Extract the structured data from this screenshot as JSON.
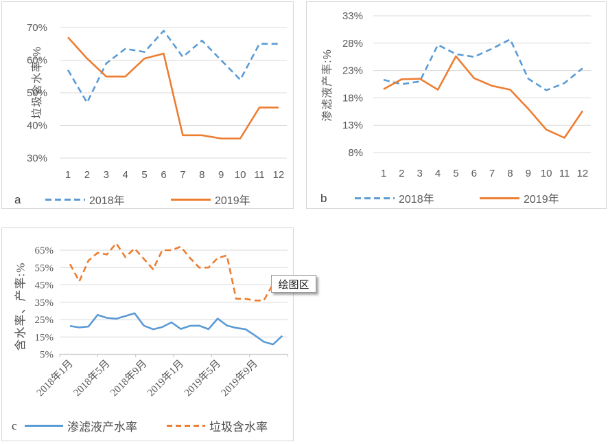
{
  "colors": {
    "series_blue": "#5B9BD5",
    "series_orange": "#ED7D31",
    "gridline": "#d9d9d9",
    "axis_line": "#c9c9c9",
    "tick_text": "#595959"
  },
  "tooltip": {
    "label": "绘图区"
  },
  "chart_data": [
    {
      "id": "a",
      "type": "line",
      "panel_label": "a",
      "y_axis_title": "垃圾含水率:%",
      "y_tick_labels": [
        "70%",
        "60%",
        "50%",
        "40%",
        "30%"
      ],
      "y_tick_values": [
        70,
        60,
        50,
        40,
        30
      ],
      "y_max": 70,
      "y_min": 30,
      "grid": true,
      "legend_position": "bottom",
      "categories": [
        "1",
        "2",
        "3",
        "4",
        "5",
        "6",
        "7",
        "8",
        "9",
        "10",
        "11",
        "12"
      ],
      "series": [
        {
          "name": "2018年",
          "color": "#5B9BD5",
          "line_style": "dashed",
          "values": [
            57,
            47,
            59,
            63.5,
            62.5,
            69,
            61,
            66,
            60,
            54,
            65,
            65
          ]
        },
        {
          "name": "2019年",
          "color": "#ED7D31",
          "line_style": "solid",
          "values": [
            67,
            60.5,
            55,
            55,
            60.5,
            62,
            37,
            37,
            36,
            36,
            45.5,
            45.5
          ]
        }
      ]
    },
    {
      "id": "b",
      "type": "line",
      "panel_label": "b",
      "y_axis_title": "渗滤液产率:%",
      "y_tick_labels": [
        "33%",
        "28%",
        "23%",
        "18%",
        "13%",
        "8%"
      ],
      "y_tick_values": [
        33,
        28,
        23,
        18,
        13,
        8
      ],
      "y_max": 33,
      "y_min": 8,
      "grid": true,
      "legend_position": "bottom",
      "categories": [
        "1",
        "2",
        "3",
        "4",
        "5",
        "6",
        "7",
        "8",
        "9",
        "10",
        "11",
        "12"
      ],
      "series": [
        {
          "name": "2018年",
          "color": "#5B9BD5",
          "line_style": "dashed",
          "values": [
            21.3,
            20.5,
            21,
            27.7,
            26,
            25.5,
            27,
            28.7,
            21.5,
            19.4,
            20.7,
            23.4
          ]
        },
        {
          "name": "2019年",
          "color": "#ED7D31",
          "line_style": "solid",
          "values": [
            19.6,
            21.4,
            21.5,
            19.5,
            25.6,
            21.6,
            20.2,
            19.5,
            16,
            12.2,
            10.7,
            15.6
          ]
        }
      ]
    },
    {
      "id": "c",
      "type": "line",
      "panel_label": "c",
      "y_axis_title": "含水率、产率:%",
      "y_tick_labels": [
        "65%",
        "55%",
        "45%",
        "35%",
        "25%",
        "15%",
        "5%"
      ],
      "y_tick_values": [
        65,
        55,
        45,
        35,
        25,
        15,
        5
      ],
      "y_max": 65,
      "y_min": 5,
      "grid": true,
      "legend_position": "bottom",
      "x_tick_labels": [
        "2018年1月",
        "2018年5月",
        "2018年9月",
        "2019年1月",
        "2019年5月",
        "2019年9月"
      ],
      "x_label_every": 4,
      "series": [
        {
          "name": "渗滤液产水率",
          "color": "#5B9BD5",
          "line_style": "solid",
          "values": [
            21.3,
            20.5,
            21,
            27.7,
            26,
            25.5,
            27,
            28.7,
            21.5,
            19.4,
            20.7,
            23.4,
            19.6,
            21.4,
            21.5,
            19.5,
            25.6,
            21.6,
            20.2,
            19.5,
            16,
            12.2,
            10.7,
            15.6
          ]
        },
        {
          "name": "垃圾含水率",
          "color": "#ED7D31",
          "line_style": "dashed",
          "values": [
            57,
            47,
            59,
            63.5,
            62.5,
            69,
            61,
            66,
            60,
            54,
            65,
            65,
            67,
            60.5,
            55,
            55,
            60.5,
            62,
            37,
            37,
            36,
            36,
            45.5,
            45.5
          ]
        }
      ]
    }
  ]
}
